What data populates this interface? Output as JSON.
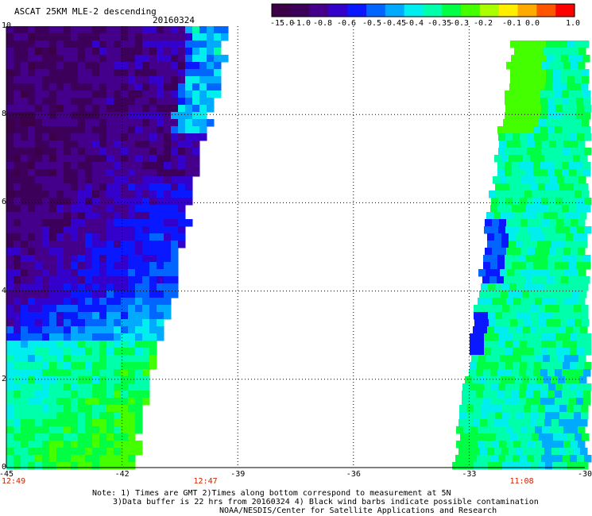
{
  "header": {
    "title": "ASCAT 25KM MLE-2 descending",
    "date": "20160324"
  },
  "colorbar": {
    "labels": [
      "-15.0",
      "-1.0",
      "-0.8",
      "-0.6",
      "-0.5",
      "-0.45",
      "-0.4",
      "-0.35",
      "-0.3",
      "-0.2",
      "-0.1",
      "0.0",
      "1.0"
    ],
    "colors": [
      "#3b0047",
      "#3c005a",
      "#44008a",
      "#3400cc",
      "#0a18ff",
      "#0066ff",
      "#00aaff",
      "#00eeee",
      "#00ffaa",
      "#00ff44",
      "#44ff00",
      "#aaff00",
      "#ffee00",
      "#ffaa00",
      "#ff5500",
      "#ff0000"
    ]
  },
  "map": {
    "x_ticks": [
      "-45",
      "-42",
      "-39",
      "-36",
      "-33",
      "-30"
    ],
    "y_ticks": [
      "0",
      "2",
      "4",
      "6",
      "8",
      "10"
    ],
    "x_range": [
      -45,
      -30
    ],
    "y_range": [
      0,
      10
    ],
    "times": [
      "12:49",
      "12:47",
      "11:08"
    ],
    "swaths": [
      {
        "name": "west",
        "lon_edge_bottom": -41.8,
        "lon_edge_top": -39.3
      },
      {
        "name": "east",
        "lon_edge_bottom": -33.4,
        "lon_edge_top": -31.8
      }
    ]
  },
  "notes": {
    "line1": "Note: 1) Times are GMT 2)Times along bottom correspond to measurement at 5N",
    "line2": "3)Data buffer is 22 hrs from 20160324 4) Black wind barbs indicate possible contamination",
    "line3": "NOAA/NESDIS/Center for Satellite Applications and Research"
  }
}
